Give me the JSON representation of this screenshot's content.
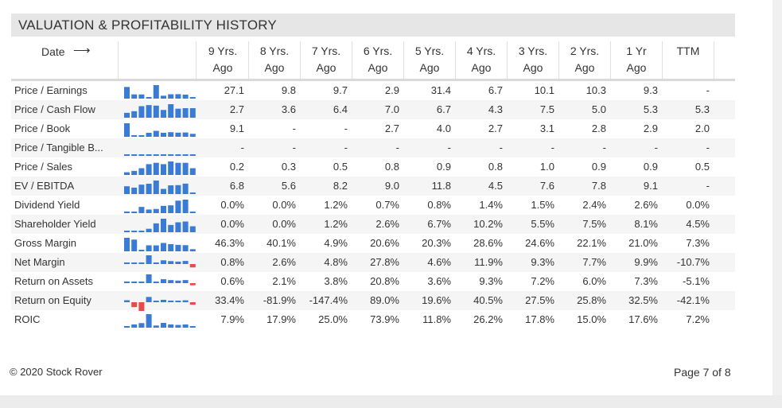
{
  "section_title": "VALUATION & PROFITABILITY HISTORY",
  "header": {
    "date_label": "Date",
    "columns": [
      {
        "line1": "9 Yrs.",
        "line2": "Ago"
      },
      {
        "line1": "8 Yrs.",
        "line2": "Ago"
      },
      {
        "line1": "7 Yrs.",
        "line2": "Ago"
      },
      {
        "line1": "6 Yrs.",
        "line2": "Ago"
      },
      {
        "line1": "5 Yrs.",
        "line2": "Ago"
      },
      {
        "line1": "4 Yrs.",
        "line2": "Ago"
      },
      {
        "line1": "3 Yrs.",
        "line2": "Ago"
      },
      {
        "line1": "2 Yrs.",
        "line2": "Ago"
      },
      {
        "line1": "1 Yr",
        "line2": "Ago"
      },
      {
        "line1": "TTM",
        "line2": ""
      }
    ]
  },
  "rows": [
    {
      "label": "Price / Earnings",
      "values": [
        "27.1",
        "9.8",
        "9.7",
        "2.9",
        "31.4",
        "6.7",
        "10.1",
        "10.3",
        "9.3",
        "-"
      ]
    },
    {
      "label": "Price / Cash Flow",
      "values": [
        "2.7",
        "3.6",
        "6.4",
        "7.0",
        "6.7",
        "4.3",
        "7.5",
        "5.0",
        "5.3",
        "5.3"
      ]
    },
    {
      "label": "Price / Book",
      "values": [
        "9.1",
        "-",
        "-",
        "2.7",
        "4.0",
        "2.7",
        "3.1",
        "2.8",
        "2.9",
        "2.0"
      ]
    },
    {
      "label": "Price / Tangible B...",
      "values": [
        "-",
        "-",
        "-",
        "-",
        "-",
        "-",
        "-",
        "-",
        "-",
        "-"
      ]
    },
    {
      "label": "Price / Sales",
      "values": [
        "0.2",
        "0.3",
        "0.5",
        "0.8",
        "0.9",
        "0.8",
        "1.0",
        "0.9",
        "0.9",
        "0.5"
      ]
    },
    {
      "label": "EV / EBITDA",
      "values": [
        "6.8",
        "5.6",
        "8.2",
        "9.0",
        "11.8",
        "4.5",
        "7.6",
        "7.8",
        "9.1",
        "-"
      ]
    },
    {
      "label": "Dividend Yield",
      "values": [
        "0.0%",
        "0.0%",
        "1.2%",
        "0.7%",
        "0.8%",
        "1.4%",
        "1.5%",
        "2.4%",
        "2.6%",
        "0.0%"
      ]
    },
    {
      "label": "Shareholder Yield",
      "values": [
        "0.0%",
        "0.0%",
        "1.2%",
        "2.6%",
        "6.7%",
        "10.2%",
        "5.5%",
        "7.5%",
        "8.1%",
        "4.5%"
      ]
    },
    {
      "label": "Gross Margin",
      "values": [
        "46.3%",
        "40.1%",
        "4.9%",
        "20.6%",
        "20.3%",
        "28.6%",
        "24.6%",
        "22.1%",
        "21.0%",
        "7.3%"
      ]
    },
    {
      "label": "Net Margin",
      "values": [
        "0.8%",
        "2.6%",
        "4.8%",
        "27.8%",
        "4.6%",
        "11.9%",
        "9.3%",
        "7.7%",
        "9.9%",
        "-10.7%"
      ]
    },
    {
      "label": "Return on Assets",
      "values": [
        "0.6%",
        "2.1%",
        "3.8%",
        "20.8%",
        "3.6%",
        "9.3%",
        "7.2%",
        "6.0%",
        "7.3%",
        "-5.1%"
      ]
    },
    {
      "label": "Return on Equity",
      "values": [
        "33.4%",
        "-81.9%",
        "-147.4%",
        "89.0%",
        "19.6%",
        "40.5%",
        "27.5%",
        "25.8%",
        "32.5%",
        "-42.1%"
      ]
    },
    {
      "label": "ROIC",
      "values": [
        "7.9%",
        "17.9%",
        "25.0%",
        "73.9%",
        "11.8%",
        "26.2%",
        "17.8%",
        "15.0%",
        "17.6%",
        "7.2%"
      ]
    }
  ],
  "sparklines": [
    [
      27.1,
      9.8,
      9.7,
      2.9,
      31.4,
      6.7,
      10.1,
      10.3,
      9.3,
      0
    ],
    [
      2.7,
      3.6,
      6.4,
      7.0,
      6.7,
      4.3,
      7.5,
      5.0,
      5.3,
      5.3
    ],
    [
      9.1,
      0,
      0,
      2.7,
      4.0,
      2.7,
      3.1,
      2.8,
      2.9,
      2.0
    ],
    [
      0,
      0,
      0,
      0,
      0,
      0,
      0,
      0,
      0,
      0
    ],
    [
      0.2,
      0.3,
      0.5,
      0.8,
      0.9,
      0.8,
      1.0,
      0.9,
      0.9,
      0.5
    ],
    [
      6.8,
      5.6,
      8.2,
      9.0,
      11.8,
      4.5,
      7.6,
      7.8,
      9.1,
      0
    ],
    [
      0,
      0,
      1.2,
      0.7,
      0.8,
      1.4,
      1.5,
      2.4,
      2.6,
      0
    ],
    [
      0,
      0,
      1.2,
      2.6,
      6.7,
      10.2,
      5.5,
      7.5,
      8.1,
      4.5
    ],
    [
      46.3,
      40.1,
      4.9,
      20.6,
      20.3,
      28.6,
      24.6,
      22.1,
      21.0,
      7.3
    ],
    [
      0.8,
      2.6,
      4.8,
      27.8,
      4.6,
      11.9,
      9.3,
      7.7,
      9.9,
      -10.7
    ],
    [
      0.6,
      2.1,
      3.8,
      20.8,
      3.6,
      9.3,
      7.2,
      6.0,
      7.3,
      -5.1
    ],
    [
      33.4,
      -81.9,
      -147.4,
      89.0,
      19.6,
      40.5,
      27.5,
      25.8,
      32.5,
      -42.1
    ],
    [
      7.9,
      17.9,
      25.0,
      73.9,
      11.8,
      26.2,
      17.8,
      15.0,
      17.6,
      7.2
    ]
  ],
  "colors": {
    "positive": "#3a7bd5",
    "negative": "#e84b4b",
    "title_bg": "#e6e6e6"
  },
  "footer": {
    "copyright": "© 2020 Stock Rover",
    "page": "Page 7 of 8"
  }
}
